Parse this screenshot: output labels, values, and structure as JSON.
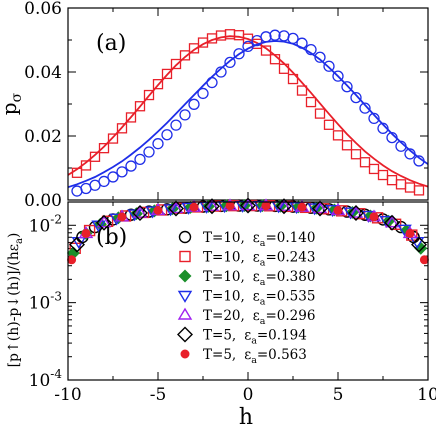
{
  "chart_data": [
    {
      "panel_label": "(a)",
      "type": "line",
      "xlabel": "",
      "ylabel": "p",
      "ylabel_sub": "σ",
      "xlim": [
        -10,
        10
      ],
      "ylim": [
        0,
        0.06
      ],
      "yticks": [
        0,
        0.02,
        0.04,
        0.06
      ],
      "ytick_labels": [
        "0.00",
        "0.02",
        "0.04",
        "0.06"
      ],
      "xticks": [
        -10,
        -5,
        0,
        5,
        10
      ],
      "series": [
        {
          "color": "#e8202a",
          "marker": "square",
          "points": {
            "x": [
              -9.5,
              -9.0,
              -8.5,
              -8.0,
              -7.5,
              -7.0,
              -6.5,
              -6.0,
              -5.5,
              -5.0,
              -4.5,
              -4.0,
              -3.5,
              -3.0,
              -2.5,
              -2.0,
              -1.5,
              -1.0,
              -0.5,
              0.0,
              0.5,
              1.0,
              1.5,
              2.0,
              2.5,
              3.0,
              3.5,
              4.0,
              4.5,
              5.0,
              5.5,
              6.0,
              6.5,
              7.0,
              7.5,
              8.0,
              8.5,
              9.0,
              9.5
            ],
            "y": [
              0.0085,
              0.0108,
              0.0135,
              0.0162,
              0.0192,
              0.0224,
              0.0258,
              0.0293,
              0.0328,
              0.0362,
              0.0394,
              0.0425,
              0.0452,
              0.0474,
              0.0492,
              0.0505,
              0.0514,
              0.0518,
              0.0515,
              0.0504,
              0.0488,
              0.0467,
              0.044,
              0.041,
              0.0378,
              0.0342,
              0.0306,
              0.027,
              0.0235,
              0.0202,
              0.0171,
              0.0143,
              0.0118,
              0.0097,
              0.0078,
              0.0062,
              0.0049,
              0.0039,
              0.003
            ]
          },
          "curve": {
            "x": [
              -10,
              -9.5,
              -9,
              -8.5,
              -8,
              -7.5,
              -7,
              -6.5,
              -6,
              -5.5,
              -5,
              -4.5,
              -4,
              -3.5,
              -3,
              -2.5,
              -2,
              -1.5,
              -1,
              -0.5,
              0,
              0.5,
              1,
              1.5,
              2,
              2.5,
              3,
              3.5,
              4,
              4.5,
              5,
              5.5,
              6,
              6.5,
              7,
              7.5,
              8,
              8.5,
              9,
              9.5,
              10
            ],
            "y": [
              0.0078,
              0.0096,
              0.0117,
              0.0141,
              0.0167,
              0.0196,
              0.0227,
              0.0259,
              0.0292,
              0.0326,
              0.0359,
              0.0391,
              0.0421,
              0.0447,
              0.0469,
              0.0487,
              0.05,
              0.0508,
              0.0512,
              0.051,
              0.0503,
              0.0491,
              0.0474,
              0.0452,
              0.0427,
              0.0398,
              0.0367,
              0.0335,
              0.0302,
              0.0269,
              0.0237,
              0.0206,
              0.0178,
              0.0152,
              0.0129,
              0.0108,
              0.009,
              0.0075,
              0.0062,
              0.0051,
              0.0042
            ]
          }
        },
        {
          "color": "#1f2ee8",
          "marker": "circle",
          "points": {
            "x": [
              -9.5,
              -9.0,
              -8.5,
              -8.0,
              -7.5,
              -7.0,
              -6.5,
              -6.0,
              -5.5,
              -5.0,
              -4.5,
              -4.0,
              -3.5,
              -3.0,
              -2.5,
              -2.0,
              -1.5,
              -1.0,
              -0.5,
              0.0,
              0.5,
              1.0,
              1.5,
              2.0,
              2.5,
              3.0,
              3.5,
              4.0,
              4.5,
              5.0,
              5.5,
              6.0,
              6.5,
              7.0,
              7.5,
              8.0,
              8.5,
              9.0,
              9.5
            ],
            "y": [
              0.0028,
              0.0036,
              0.0046,
              0.0058,
              0.0072,
              0.0088,
              0.0106,
              0.0127,
              0.015,
              0.0176,
              0.0204,
              0.0234,
              0.0266,
              0.0299,
              0.0333,
              0.0367,
              0.04,
              0.043,
              0.0457,
              0.048,
              0.0498,
              0.051,
              0.0515,
              0.0513,
              0.0505,
              0.049,
              0.047,
              0.0446,
              0.0418,
              0.0387,
              0.0354,
              0.032,
              0.0287,
              0.0255,
              0.0224,
              0.0195,
              0.0168,
              0.0144,
              0.0122
            ]
          },
          "curve": {
            "x": [
              -10,
              -9.5,
              -9,
              -8.5,
              -8,
              -7.5,
              -7,
              -6.5,
              -6,
              -5.5,
              -5,
              -4.5,
              -4,
              -3.5,
              -3,
              -2.5,
              -2,
              -1.5,
              -1,
              -0.5,
              0,
              0.5,
              1,
              1.5,
              2,
              2.5,
              3,
              3.5,
              4,
              4.5,
              5,
              5.5,
              6,
              6.5,
              7,
              7.5,
              8,
              8.5,
              9,
              9.5,
              10
            ],
            "y": [
              0.004,
              0.0049,
              0.006,
              0.0072,
              0.0087,
              0.0103,
              0.0121,
              0.0142,
              0.0164,
              0.0188,
              0.0214,
              0.0241,
              0.027,
              0.0299,
              0.0328,
              0.0357,
              0.0385,
              0.0411,
              0.0435,
              0.0456,
              0.0473,
              0.0486,
              0.0494,
              0.0497,
              0.0495,
              0.0488,
              0.0476,
              0.0459,
              0.0439,
              0.0414,
              0.0387,
              0.0358,
              0.0328,
              0.0297,
              0.0266,
              0.0236,
              0.0207,
              0.018,
              0.0155,
              0.0132,
              0.0112
            ]
          }
        }
      ]
    },
    {
      "panel_label": "(b)",
      "type": "scatter",
      "xlabel": "h",
      "ylabel": "[p↑(h)-p↓(h)]/(hε",
      "ylabel_sub": "a",
      "ylabel_end": ")",
      "xlim": [
        -10,
        10
      ],
      "ylim": [
        0.0001,
        0.02
      ],
      "yscale": "log",
      "yticks_exp": [
        -4,
        -3,
        -2
      ],
      "xticks": [
        -10,
        -5,
        0,
        5,
        10
      ],
      "xtick_labels": [
        "-10",
        "-5",
        "0",
        "5",
        "10"
      ],
      "legend": "right",
      "series": [
        {
          "name_prefix": "T=10,",
          "eps": "ε",
          "eps_sub": "a",
          "value": "=0.140",
          "marker": "circle",
          "stroke": "#000000",
          "fill": "none",
          "x": [
            -9.2,
            -8.5,
            -7.5,
            -6.5,
            -5.5,
            -4.5,
            -3.5,
            -2.5,
            -1.5,
            -0.5,
            0.5,
            1.5,
            2.5,
            3.5,
            4.5,
            5.5,
            6.5,
            7.5,
            8.5,
            9.2
          ]
        },
        {
          "name_prefix": "T=10,",
          "eps": "ε",
          "eps_sub": "a",
          "value": "=0.243",
          "marker": "square",
          "stroke": "#e8202a",
          "fill": "none",
          "x": [
            -9.6,
            -8.8,
            -7.8,
            -6.8,
            -5.8,
            -4.8,
            -3.8,
            -2.8,
            -1.8,
            -0.8,
            0.2,
            1.2,
            2.2,
            3.2,
            4.2,
            5.2,
            6.2,
            7.2,
            8.2,
            9.1
          ]
        },
        {
          "name_prefix": "T=10,",
          "eps": "ε",
          "eps_sub": "a",
          "value": "=0.380",
          "marker": "diamond",
          "stroke": "#1a8f2a",
          "fill": "#1a8f2a",
          "x": [
            -9.7,
            -9.0,
            -8.2,
            -7.2,
            -6.2,
            -5.2,
            -4.2,
            -3.2,
            -2.2,
            -1.2,
            -0.2,
            0.8,
            1.8,
            2.8,
            3.8,
            4.8,
            5.8,
            6.8,
            7.8,
            8.8,
            9.6
          ]
        },
        {
          "name_prefix": "T=10,",
          "eps": "ε",
          "eps_sub": "a",
          "value": "=0.535",
          "marker": "triangle-down",
          "stroke": "#1f2ee8",
          "fill": "none",
          "x": [
            -9.4,
            -8.3,
            -7.3,
            -6.3,
            -5.3,
            -4.3,
            -3.3,
            -2.3,
            -1.3,
            -0.3,
            0.7,
            1.7,
            2.7,
            3.7,
            4.7,
            5.7,
            6.7,
            7.7,
            8.7,
            9.4
          ]
        },
        {
          "name_prefix": "T=20,",
          "eps": "ε",
          "eps_sub": "a",
          "value": "=0.296",
          "marker": "triangle-up",
          "stroke": "#a020f0",
          "fill": "none",
          "x": [
            -9.0,
            -8.0,
            -7.0,
            -6.0,
            -5.0,
            -4.0,
            -3.0,
            -2.0,
            -1.0,
            0.0,
            1.0,
            2.0,
            3.0,
            4.0,
            5.0,
            6.0,
            7.0,
            8.0,
            9.0
          ]
        },
        {
          "name_prefix": "T=5,",
          "eps": "ε",
          "eps_sub": "a",
          "value": "=0.194",
          "marker": "diamond",
          "stroke": "#000000",
          "fill": "none",
          "x": [
            -9.5,
            -8.0,
            -6.0,
            -4.0,
            -2.0,
            0.0,
            2.0,
            4.0,
            6.0,
            8.0,
            9.5
          ]
        },
        {
          "name_prefix": "T=5,",
          "eps": "ε",
          "eps_sub": "a",
          "value": "=0.563",
          "marker": "circle",
          "stroke": "#e8202a",
          "fill": "#e8202a",
          "small": true,
          "x": [
            -9.8,
            -9.0,
            -7.0,
            -5.0,
            -3.0,
            -1.0,
            1.0,
            3.0,
            5.0,
            7.0,
            9.0,
            9.8
          ]
        }
      ]
    }
  ]
}
